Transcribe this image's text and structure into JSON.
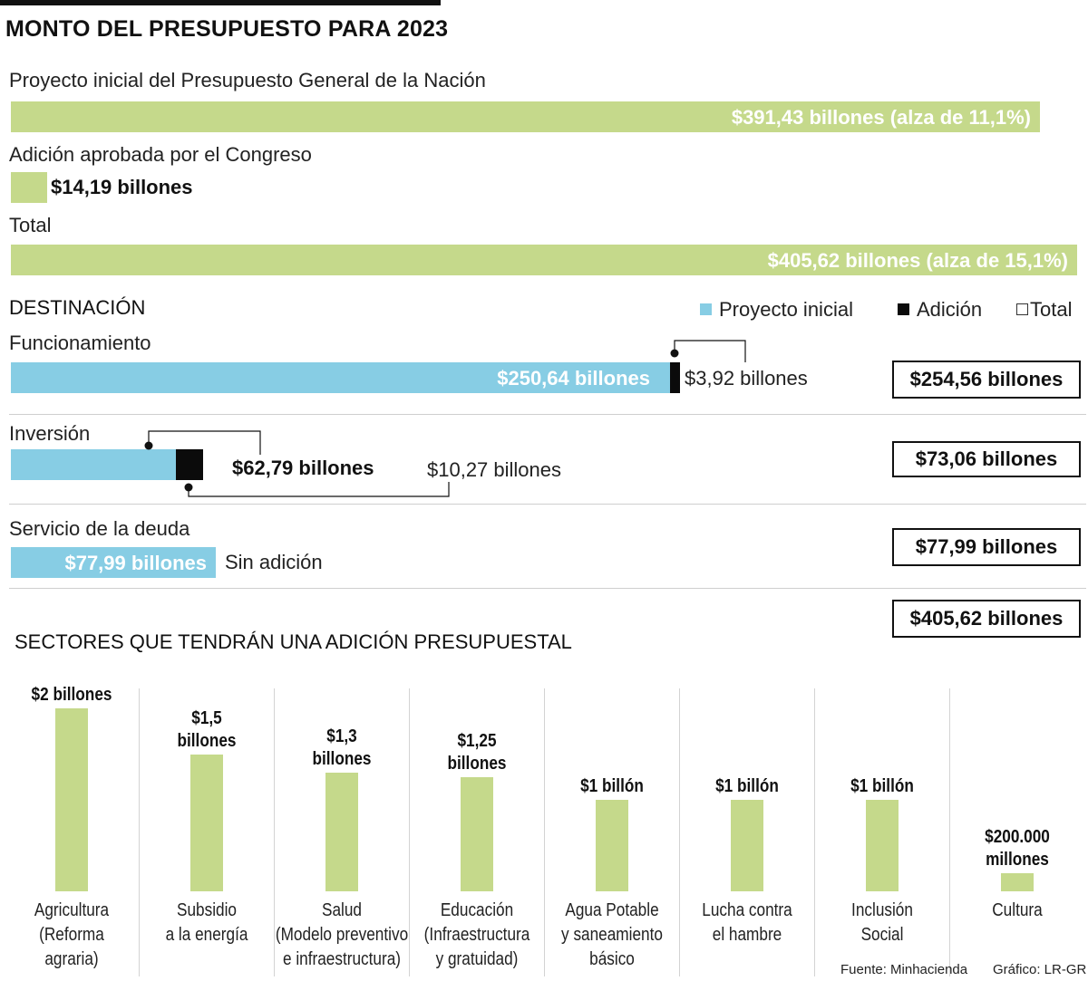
{
  "title": "MONTO DEL PRESUPUESTO PARA 2023",
  "overview": {
    "initial_label": "Proyecto inicial del Presupuesto General de la Nación",
    "initial_value": "$391,43 billones (alza de 11,1%)",
    "addition_label": "Adición aprobada por el Congreso",
    "addition_value": "$14,19 billones",
    "total_label": "Total",
    "total_value": "$405,62 billones (alza de 15,1%)"
  },
  "destination": {
    "heading": "DESTINACIÓN",
    "legend": {
      "initial": "Proyecto inicial",
      "addition": "Adición",
      "total": "Total"
    },
    "rows": [
      {
        "name": "Funcionamiento",
        "initial": "$250,64 billones",
        "addition": "$3,92 billones",
        "total": "$254,56 billones"
      },
      {
        "name": "Inversión",
        "initial": "$62,79 billones",
        "addition": "$10,27 billones",
        "total": "$73,06 billones"
      },
      {
        "name": "Servicio de la deuda",
        "initial": "$77,99 billones",
        "addition": "Sin adición",
        "total": "$77,99 billones"
      }
    ],
    "grand_total": "$405,62 billones"
  },
  "chart_data": [
    {
      "type": "bar",
      "title": "MONTO DEL PRESUPUESTO PARA 2023",
      "orientation": "horizontal",
      "categories": [
        "Proyecto inicial del Presupuesto General de la Nación",
        "Adición aprobada por el Congreso",
        "Total"
      ],
      "values": [
        391.43,
        14.19,
        405.62
      ],
      "unit": "billones"
    },
    {
      "type": "bar",
      "title": "DESTINACIÓN",
      "orientation": "horizontal",
      "stacked": true,
      "categories": [
        "Funcionamiento",
        "Inversión",
        "Servicio de la deuda"
      ],
      "series": [
        {
          "name": "Proyecto inicial",
          "values": [
            250.64,
            62.79,
            77.99
          ]
        },
        {
          "name": "Adición",
          "values": [
            3.92,
            10.27,
            0
          ]
        }
      ],
      "totals": [
        254.56,
        73.06,
        77.99
      ],
      "unit": "billones"
    },
    {
      "type": "bar",
      "title": "SECTORES QUE TENDRÁN UNA ADICIÓN PRESUPUESTAL",
      "categories": [
        "Agricultura\n(Reforma\nagraria)",
        "Subsidio\na la energía",
        "Salud\n(Modelo preventivo\ne infraestructura)",
        "Educación\n(Infraestructura\ny gratuidad)",
        "Agua Potable\ny saneamiento\nbásico",
        "Lucha contra\nel hambre",
        "Inclusión\nSocial",
        "Cultura"
      ],
      "values": [
        2,
        1.5,
        1.3,
        1.25,
        1,
        1,
        1,
        0.2
      ],
      "labels": [
        "$2 billones",
        "$1,5\nbillones",
        "$1,3\nbillones",
        "$1,25\nbillones",
        "$1 billón",
        "$1 billón",
        "$1 billón",
        "$200.000\nmillones"
      ],
      "unit": "billones de pesos"
    }
  ],
  "sectors_heading": "SECTORES QUE TENDRÁN UNA ADICIÓN PRESUPUESTAL",
  "footer": {
    "source": "Fuente: Minhacienda",
    "credit": "Gráfico: LR-GR"
  },
  "colors": {
    "green": "#c5d98b",
    "blue": "#87cde4",
    "black": "#0b0b0b"
  }
}
